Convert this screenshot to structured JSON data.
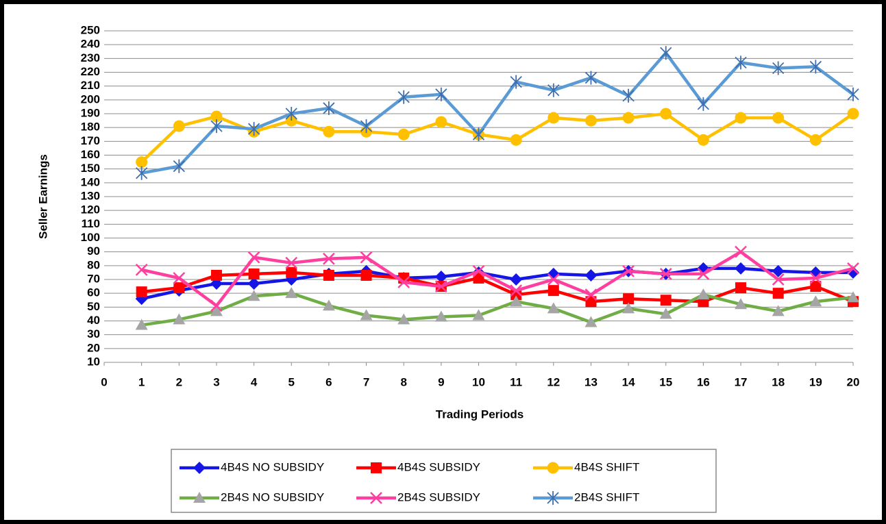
{
  "chart_data": {
    "type": "line",
    "xlabel": "Trading Periods",
    "ylabel": "Seller Earnings",
    "x": [
      1,
      2,
      3,
      4,
      5,
      6,
      7,
      8,
      9,
      10,
      11,
      12,
      13,
      14,
      15,
      16,
      17,
      18,
      19,
      20
    ],
    "xlim": [
      0,
      20
    ],
    "xticks": [
      0,
      1,
      2,
      3,
      4,
      5,
      6,
      7,
      8,
      9,
      10,
      11,
      12,
      13,
      14,
      15,
      16,
      17,
      18,
      19,
      20
    ],
    "ylim": [
      10,
      250
    ],
    "yticks": [
      10,
      20,
      30,
      40,
      50,
      60,
      70,
      80,
      90,
      100,
      110,
      120,
      130,
      140,
      150,
      160,
      170,
      180,
      190,
      200,
      210,
      220,
      230,
      240,
      250
    ],
    "grid": true,
    "legend": "bottom",
    "series": [
      {
        "name": "4B4S NO SUBSIDY",
        "color": "#1515e6",
        "marker": "diamond",
        "values": [
          56,
          62,
          67,
          67,
          70,
          74,
          76,
          71,
          72,
          75,
          70,
          74,
          73,
          76,
          74,
          78,
          78,
          76,
          75,
          75
        ]
      },
      {
        "name": "4B4S SUBSIDY",
        "color": "#ff0000",
        "marker": "square",
        "values": [
          61,
          64,
          73,
          74,
          75,
          73,
          73,
          71,
          65,
          71,
          59,
          62,
          54,
          56,
          55,
          54,
          64,
          60,
          65,
          54
        ]
      },
      {
        "name": "4B4S SHIFT",
        "color": "#ffc000",
        "marker": "circle",
        "values": [
          155,
          181,
          188,
          177,
          185,
          177,
          177,
          175,
          184,
          175,
          171,
          187,
          185,
          187,
          190,
          171,
          187,
          187,
          171,
          190
        ]
      },
      {
        "name": "2B4S NO SUBSIDY",
        "color": "#70ad47",
        "marker_color": "#a5a5a5",
        "marker": "triangle",
        "values": [
          37,
          41,
          47,
          58,
          60,
          51,
          44,
          41,
          43,
          44,
          54,
          49,
          39,
          49,
          45,
          59,
          52,
          47,
          54,
          57
        ]
      },
      {
        "name": "2B4S SUBSIDY",
        "color": "#ff3fa0",
        "marker": "x",
        "values": [
          77,
          71,
          51,
          86,
          82,
          85,
          86,
          68,
          65,
          76,
          62,
          70,
          59,
          76,
          74,
          74,
          90,
          70,
          71,
          78
        ]
      },
      {
        "name": "2B4S SHIFT",
        "color": "#5b9bd5",
        "marker_color": "#3d6fb0",
        "marker": "asterisk",
        "values": [
          147,
          152,
          181,
          179,
          190,
          194,
          181,
          202,
          204,
          175,
          213,
          207,
          216,
          203,
          234,
          197,
          227,
          223,
          224,
          204
        ]
      }
    ]
  }
}
